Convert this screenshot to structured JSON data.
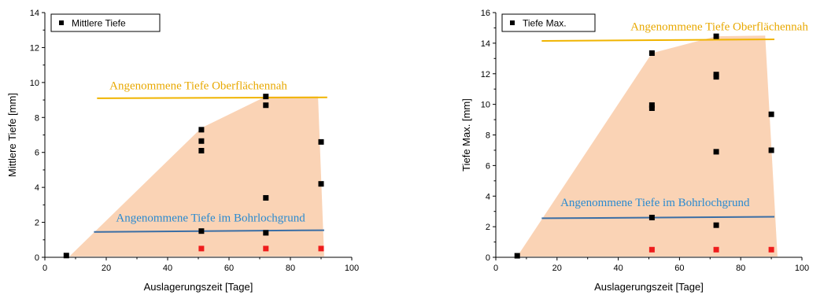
{
  "colors": {
    "region": "#f9cba8",
    "black_points": "#000000",
    "red_points": "#ee1c1c",
    "surface_line": "#f0b400",
    "bottom_line": "#3a6ea5",
    "surface_text": "#e8a800",
    "bottom_text": "#2a8ad0"
  },
  "chart_data": [
    {
      "type": "scatter",
      "xlabel": "Auslagerungszeit [Tage]",
      "ylabel": "Mittlere Tiefe [mm]",
      "xlim": [
        0,
        100
      ],
      "ylim": [
        0,
        14
      ],
      "xticks": [
        "0",
        "20",
        "40",
        "60",
        "80",
        "100"
      ],
      "yticks": [
        "0",
        "2",
        "4",
        "6",
        "8",
        "10",
        "12",
        "14"
      ],
      "legend": {
        "label": "Mittlere Tiefe",
        "position": "top-left"
      },
      "series": [
        {
          "name": "Mittlere Tiefe",
          "color": "black",
          "points": [
            [
              7,
              0.1
            ],
            [
              51,
              7.3
            ],
            [
              51,
              6.65
            ],
            [
              51,
              6.1
            ],
            [
              51,
              1.5
            ],
            [
              72,
              9.2
            ],
            [
              72,
              8.7
            ],
            [
              72,
              3.4
            ],
            [
              72,
              1.4
            ],
            [
              90,
              6.6
            ],
            [
              90,
              4.2
            ]
          ]
        },
        {
          "color": "red",
          "points": [
            [
              51,
              0.5
            ],
            [
              72,
              0.5
            ],
            [
              90,
              0.5
            ]
          ]
        }
      ],
      "region_polygon": [
        [
          8,
          0.05
        ],
        [
          51,
          7.4
        ],
        [
          72,
          9.2
        ],
        [
          89,
          9.2
        ],
        [
          91,
          0.05
        ]
      ],
      "annotations": [
        {
          "text": "Angenommene Tiefe Oberflächennah",
          "line": [
            [
              17,
              9.1
            ],
            [
              92,
              9.15
            ]
          ],
          "text_at": [
            50,
            9.6
          ],
          "style": "surface"
        },
        {
          "text": "Angenommene Tiefe im Bohrlochgrund",
          "line": [
            [
              16,
              1.45
            ],
            [
              91,
              1.55
            ]
          ],
          "text_at": [
            54,
            2.05
          ],
          "style": "bottom"
        }
      ]
    },
    {
      "type": "scatter",
      "xlabel": "Auslagerungszeit [Tage]",
      "ylabel": "Tiefe Max. [mm]",
      "xlim": [
        0,
        100
      ],
      "ylim": [
        0,
        16
      ],
      "xticks": [
        "0",
        "20",
        "40",
        "60",
        "80",
        "100"
      ],
      "yticks": [
        "0",
        "2",
        "4",
        "6",
        "8",
        "10",
        "12",
        "14",
        "16"
      ],
      "legend": {
        "label": "Tiefe Max.",
        "position": "top-left"
      },
      "series": [
        {
          "name": "Tiefe Max.",
          "color": "black",
          "points": [
            [
              7,
              0.1
            ],
            [
              51,
              13.35
            ],
            [
              51,
              9.95
            ],
            [
              51,
              9.75
            ],
            [
              51,
              2.6
            ],
            [
              72,
              14.45
            ],
            [
              72,
              11.95
            ],
            [
              72,
              11.8
            ],
            [
              72,
              6.9
            ],
            [
              72,
              2.1
            ],
            [
              90,
              9.35
            ],
            [
              90,
              7.0
            ]
          ]
        },
        {
          "color": "red",
          "points": [
            [
              51,
              0.5
            ],
            [
              72,
              0.5
            ],
            [
              90,
              0.5
            ]
          ]
        }
      ],
      "region_polygon": [
        [
          7,
          0.05
        ],
        [
          51,
          13.35
        ],
        [
          72,
          14.45
        ],
        [
          88,
          14.5
        ],
        [
          92,
          0.05
        ]
      ],
      "annotations": [
        {
          "text": "Angenommene Tiefe Oberflächennah",
          "line": [
            [
              15,
              14.15
            ],
            [
              91,
              14.25
            ]
          ],
          "text_at": [
            73,
            14.85
          ],
          "style": "surface"
        },
        {
          "text": "Angenommene Tiefe im Bohrlochgrund",
          "line": [
            [
              15,
              2.55
            ],
            [
              91,
              2.65
            ]
          ],
          "text_at": [
            52,
            3.35
          ],
          "style": "bottom"
        }
      ]
    }
  ]
}
